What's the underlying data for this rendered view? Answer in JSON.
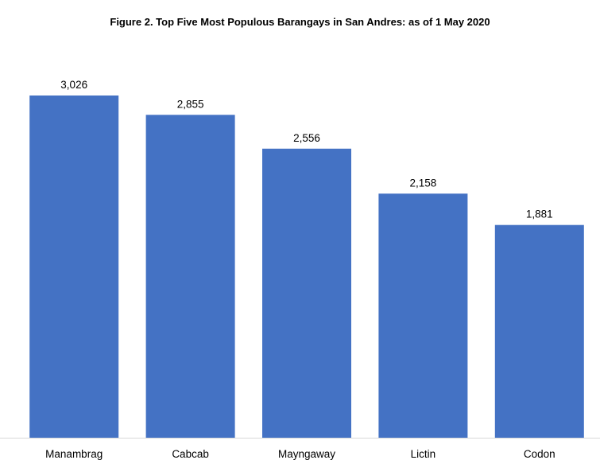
{
  "chart_data": {
    "type": "bar",
    "title": "Figure 2. Top Five Most Populous Barangays in San Andres: as of 1 May 2020",
    "categories": [
      "Manambrag",
      "Cabcab",
      "Mayngaway",
      "Lictin",
      "Codon"
    ],
    "values": [
      3026,
      2855,
      2556,
      2158,
      1881
    ],
    "data_labels": [
      "3,026",
      "2,855",
      "2,556",
      "2,158",
      "1,881"
    ],
    "xlabel": "",
    "ylabel": "",
    "ylim": [
      0,
      3026
    ],
    "grid": false,
    "legend": "none",
    "bar_color": "#4472C4",
    "axis_color": "#D9D9D9"
  }
}
